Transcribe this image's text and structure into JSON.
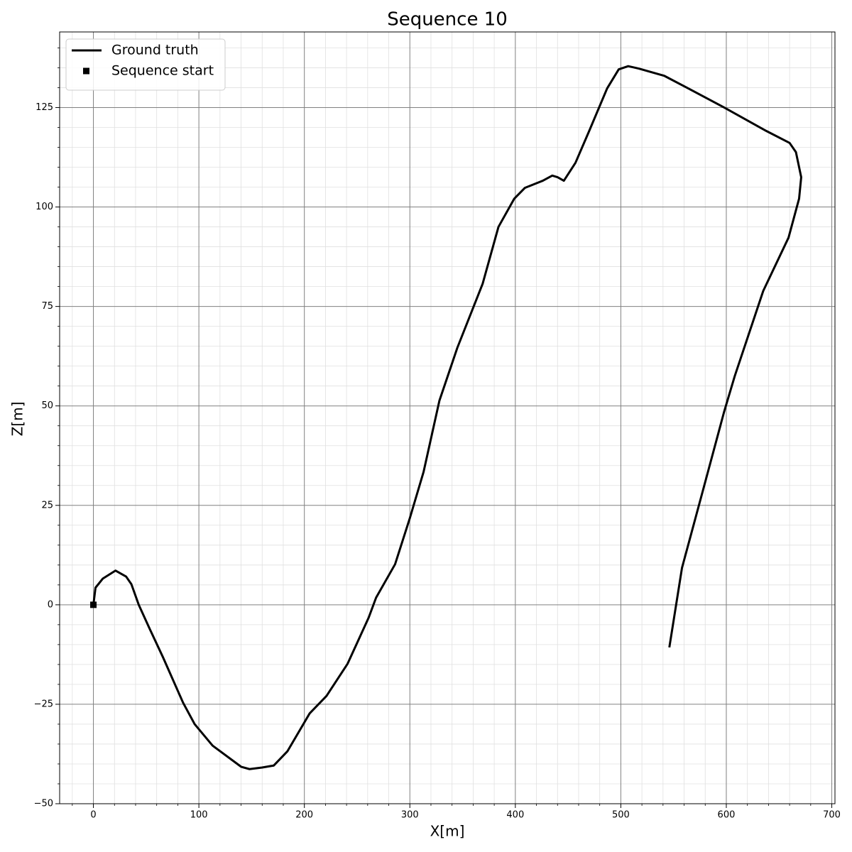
{
  "chart_data": {
    "type": "line",
    "title": "Sequence 10",
    "xlabel": "X[m]",
    "ylabel": "Z[m]",
    "xlim": [
      -32,
      703
    ],
    "ylim": [
      -50,
      144
    ],
    "xticks": [
      0,
      100,
      200,
      300,
      400,
      500,
      600,
      700
    ],
    "yticks": [
      {
        "value": -50,
        "label": "−50"
      },
      {
        "value": -25,
        "label": "−25"
      },
      0,
      25,
      50,
      75,
      100,
      125
    ],
    "xminorticks": [
      -20,
      20,
      40,
      60,
      80,
      120,
      140,
      160,
      180,
      220,
      240,
      260,
      280,
      320,
      340,
      360,
      380,
      420,
      440,
      460,
      480,
      520,
      540,
      560,
      580,
      620,
      640,
      660,
      680
    ],
    "yminorticks": [
      -45,
      -40,
      -35,
      -30,
      -20,
      -15,
      -10,
      -5,
      5,
      10,
      15,
      20,
      30,
      35,
      40,
      45,
      55,
      60,
      65,
      70,
      80,
      85,
      90,
      95,
      105,
      110,
      115,
      120,
      130,
      135,
      140
    ],
    "grid": true,
    "legend": "upper left",
    "series": [
      {
        "name": "Ground truth",
        "color": "#000000",
        "type": "line",
        "x": [
          0,
          2,
          9,
          21,
          31,
          36,
          43,
          54,
          66,
          85,
          96,
          113,
          140,
          148,
          160,
          171,
          184,
          205,
          221,
          241,
          261,
          268,
          286,
          300,
          313,
          328,
          345,
          369,
          384,
          399,
          409,
          426,
          435,
          440,
          446,
          457,
          470,
          487,
          498,
          507,
          517,
          541,
          564,
          598,
          638,
          660,
          666,
          671,
          669,
          659,
          635,
          608,
          598,
          578,
          558,
          546
        ],
        "values": [
          0,
          4.3,
          6.6,
          8.6,
          7.1,
          5.2,
          0,
          -6.4,
          -13.2,
          -24.6,
          -30,
          -35.4,
          -40.7,
          -41.3,
          -40.9,
          -40.4,
          -36.8,
          -27.3,
          -22.9,
          -14.8,
          -3.2,
          1.8,
          10.2,
          21.8,
          33.4,
          51.3,
          64.6,
          80.7,
          95,
          102.1,
          104.8,
          106.6,
          107.9,
          107.5,
          106.6,
          111.1,
          119.1,
          129.8,
          134.6,
          135.4,
          134.8,
          133,
          129.8,
          125,
          119.1,
          116.1,
          113.8,
          107.5,
          102.1,
          92.3,
          78.9,
          57.5,
          48.6,
          28.9,
          9.3,
          -10.7
        ]
      },
      {
        "name": "Sequence start",
        "color": "#000000",
        "type": "scatter",
        "marker": "square",
        "x": [
          0
        ],
        "values": [
          0
        ]
      }
    ]
  }
}
